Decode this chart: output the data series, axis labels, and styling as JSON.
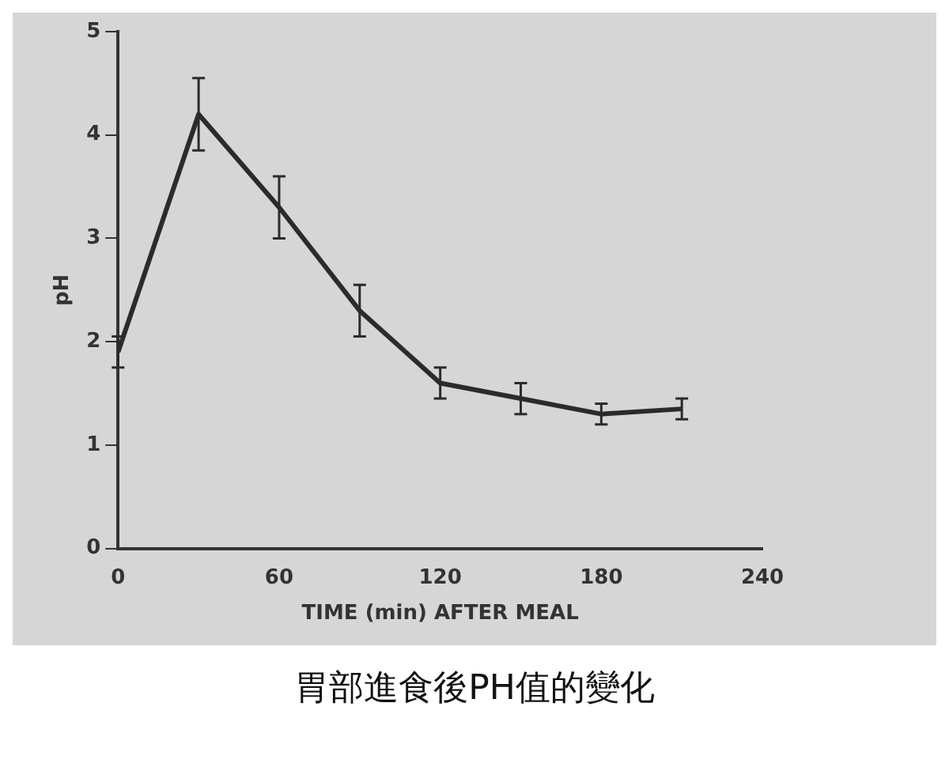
{
  "chart_data": {
    "type": "line",
    "title": "胃部進食後PH值的變化",
    "xlabel": "TIME (min) AFTER MEAL",
    "ylabel": "pH",
    "x": [
      0,
      30,
      60,
      90,
      120,
      150,
      180,
      210
    ],
    "series": [
      {
        "color": "#2b2b2b",
        "values": [
          1.9,
          4.2,
          3.3,
          2.3,
          1.6,
          1.45,
          1.3,
          1.35
        ],
        "errors": [
          0.15,
          0.35,
          0.3,
          0.25,
          0.15,
          0.15,
          0.1,
          0.1
        ]
      }
    ],
    "xlim": [
      0,
      240
    ],
    "xticks": [
      0,
      60,
      120,
      180,
      240
    ],
    "ylim": [
      0,
      5
    ],
    "yticks": [
      0,
      1,
      2,
      3,
      4,
      5
    ],
    "grid": false,
    "legend": false,
    "marker": "none",
    "line_style": "solid"
  }
}
